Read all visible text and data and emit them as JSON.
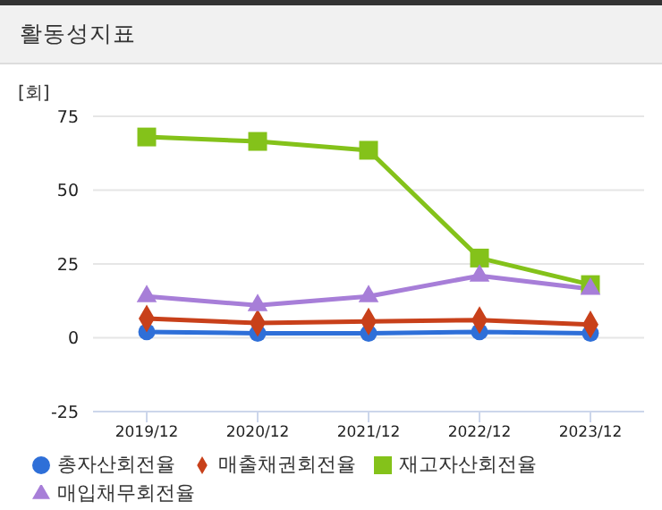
{
  "chart_data": {
    "type": "line",
    "title": "활동성지표",
    "ylabel": "[회]",
    "categories": [
      "2019/12",
      "2020/12",
      "2021/12",
      "2022/12",
      "2023/12"
    ],
    "series": [
      {
        "name": "총자산회전율",
        "color": "#2e6fd8",
        "marker": "circle",
        "values": [
          2,
          1.5,
          1.5,
          2,
          1.5
        ]
      },
      {
        "name": "매출채권회전율",
        "color": "#c8401a",
        "marker": "diamond",
        "values": [
          6.5,
          5,
          5.5,
          6,
          4.5
        ]
      },
      {
        "name": "재고자산회전율",
        "color": "#84c21a",
        "marker": "square",
        "values": [
          68,
          66.5,
          63.5,
          27,
          18
        ]
      },
      {
        "name": "매입채무회전율",
        "color": "#a77ed8",
        "marker": "triangle",
        "values": [
          14,
          11,
          14,
          21,
          16.5
        ]
      }
    ],
    "ylim": [
      -25,
      75
    ],
    "yticks": [
      -25,
      0,
      25,
      50,
      75
    ],
    "grid": "y",
    "legend": "bottom"
  }
}
